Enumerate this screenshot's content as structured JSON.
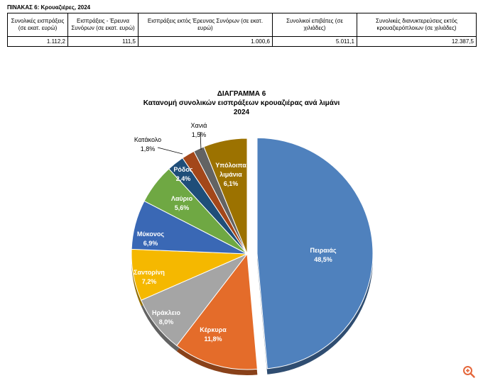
{
  "table": {
    "caption": "ΠΙΝΑΚΑΣ 6: Κρουαζιέρες, 2024",
    "headers": [
      "Συνολικές εισπράξεις (σε εκατ. ευρώ)",
      "Εισπράξεις - Έρευνα Συνόρων (σε εκατ. ευρώ)",
      "Εισπράξεις εκτός Έρευνας Συνόρων (σε εκατ. ευρώ)",
      "Συνολικοί επιβάτες (σε χιλιάδες)",
      "Συνολικές διανυκτερεύσεις εκτός κρουαζιερόπλοιων (σε χιλιάδες)"
    ],
    "row": [
      "1.112,2",
      "111,5",
      "1.000,6",
      "5.011,1",
      "12.387,5"
    ]
  },
  "chart_data": {
    "type": "pie",
    "title": "ΔΙΑΓΡΑΜΜΑ 6",
    "subtitle": "Κατανομή συνολικών εισπράξεων κρουαζιέρας ανά λιμάνι",
    "year": "2024",
    "slices": [
      {
        "name": "Πειραιάς",
        "value": 48.5,
        "label": "48,5%",
        "color": "#4f81bd",
        "exploded": true,
        "label_color": "#ffffff"
      },
      {
        "name": "Κέρκυρα",
        "value": 11.8,
        "label": "11,8%",
        "color": "#e46c2a",
        "exploded": false,
        "label_color": "#ffffff"
      },
      {
        "name": "Ηράκλειο",
        "value": 8.0,
        "label": "8,0%",
        "color": "#a5a5a5",
        "exploded": false,
        "label_color": "#ffffff"
      },
      {
        "name": "Σαντορίνη",
        "value": 7.2,
        "label": "7,2%",
        "color": "#f5b800",
        "exploded": false,
        "label_color": "#ffffff"
      },
      {
        "name": "Μύκονος",
        "value": 6.9,
        "label": "6,9%",
        "color": "#3a68b5",
        "exploded": false,
        "label_color": "#ffffff"
      },
      {
        "name": "Λαύριο",
        "value": 5.6,
        "label": "5,6%",
        "color": "#6fa843",
        "exploded": false,
        "label_color": "#ffffff"
      },
      {
        "name": "Ρόδος",
        "value": 2.4,
        "label": "2,4%",
        "color": "#1f4e79",
        "exploded": false,
        "label_color": "#ffffff"
      },
      {
        "name": "Κατάκολο",
        "value": 1.8,
        "label": "1,8%",
        "color": "#a3471a",
        "exploded": false,
        "label_color": "#000000"
      },
      {
        "name": "Χανιά",
        "value": 1.5,
        "label": "1,5%",
        "color": "#636363",
        "exploded": false,
        "label_color": "#000000"
      },
      {
        "name": "Υπόλοιπα λιμάνια",
        "value": 6.1,
        "label": "6,1%",
        "color": "#9c7200",
        "exploded": false,
        "label_color": "#ffffff"
      }
    ]
  },
  "colors": {
    "table_border": "#000000",
    "zoom_icon": "#e5673b",
    "leader_line": "#000000"
  },
  "icons": {
    "zoom": "zoom-in-icon"
  }
}
